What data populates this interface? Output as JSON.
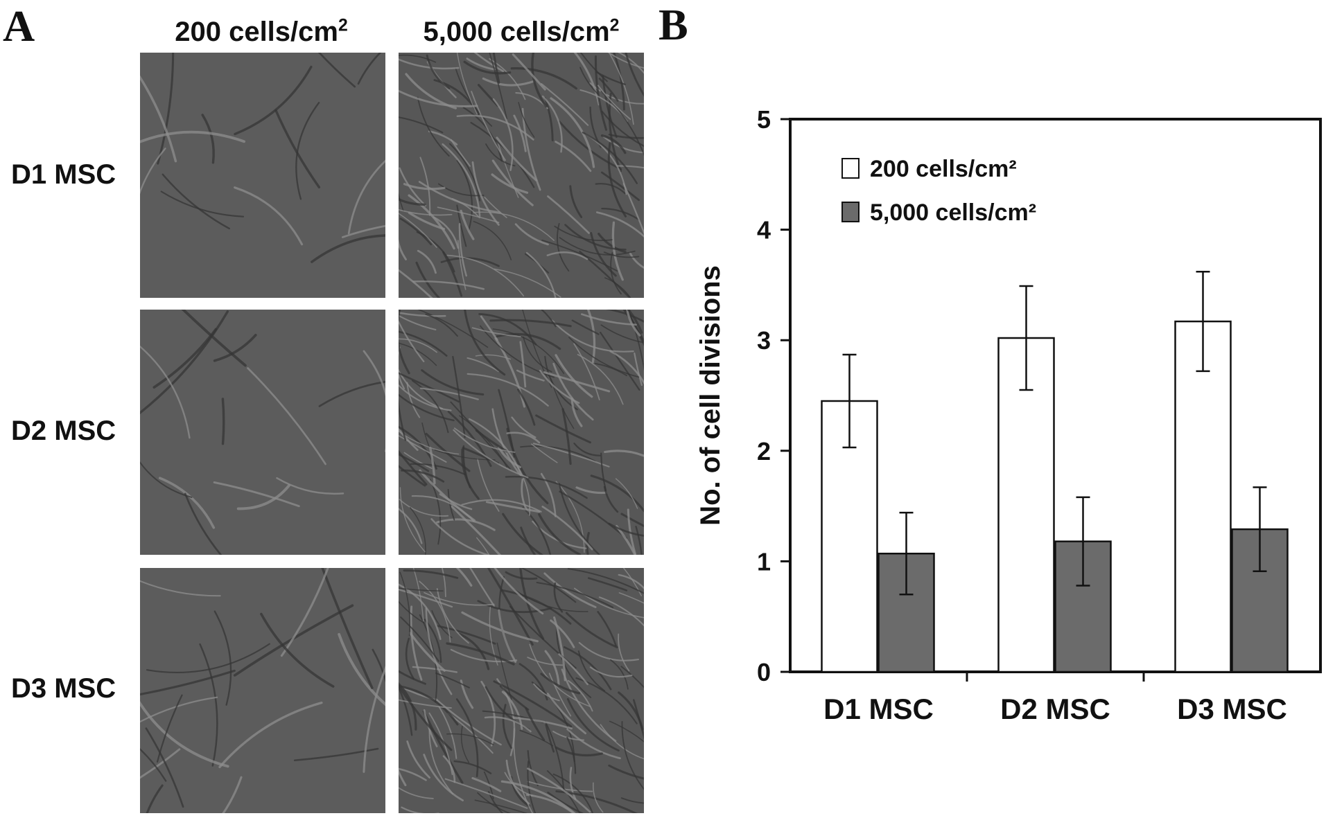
{
  "panel_a": {
    "letter": "A",
    "column_headers": [
      {
        "text": "200 cells/cm",
        "sup": "2"
      },
      {
        "text": "5,000 cells/cm",
        "sup": "2"
      }
    ],
    "row_headers": [
      "D1 MSC",
      "D2 MSC",
      "D3 MSC"
    ]
  },
  "panel_b": {
    "letter": "B"
  },
  "chart_data": {
    "type": "bar",
    "categories": [
      "D1 MSC",
      "D2 MSC",
      "D3 MSC"
    ],
    "series": [
      {
        "name": "200 cells/cm²",
        "values": [
          2.45,
          3.02,
          3.17
        ],
        "errors": [
          0.42,
          0.47,
          0.45
        ],
        "color": "#ffffff"
      },
      {
        "name": "5,000 cells/cm²",
        "values": [
          1.07,
          1.18,
          1.29
        ],
        "errors": [
          0.37,
          0.4,
          0.38
        ],
        "color": "#6b6b6b"
      }
    ],
    "xlabel": "",
    "ylabel": "No. of cell divisions",
    "ylim": [
      0,
      5
    ],
    "yticks": [
      0,
      1,
      2,
      3,
      4,
      5
    ],
    "grid": false,
    "legend_position": "top-left"
  }
}
